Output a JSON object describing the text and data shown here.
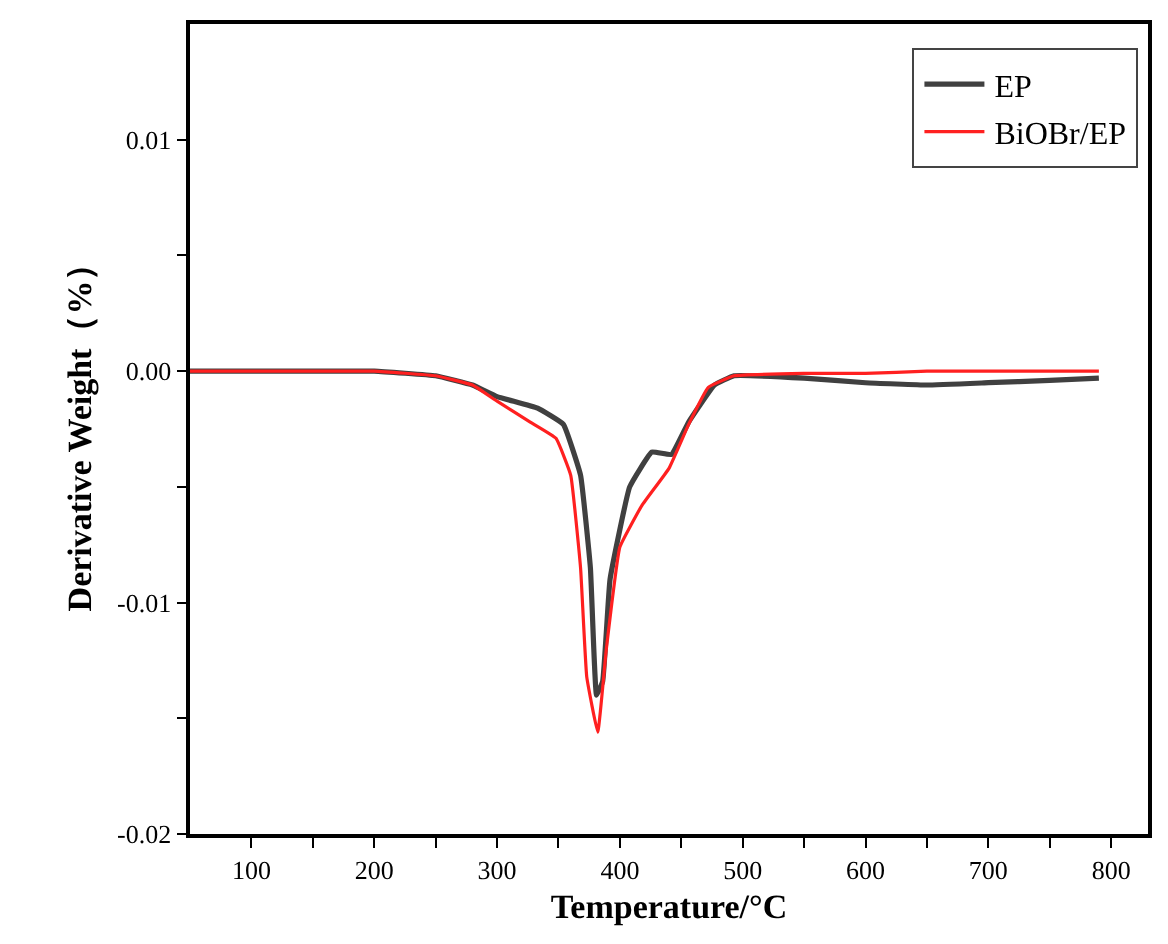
{
  "chart_data": {
    "type": "line",
    "xlabel": "Temperature/°C",
    "ylabel": "Derivative Weight（%）",
    "xlim": [
      50,
      830
    ],
    "ylim": [
      -0.02,
      0.015
    ],
    "xticks": [
      100,
      {
        "value": 150,
        "label": null
      },
      200,
      {
        "value": 250,
        "label": null
      },
      300,
      {
        "value": 350,
        "label": null
      },
      400,
      {
        "value": 450,
        "label": null
      },
      500,
      {
        "value": 550,
        "label": null
      },
      600,
      {
        "value": 650,
        "label": null
      },
      700,
      {
        "value": 750,
        "label": null
      },
      800
    ],
    "yticks": [
      -0.02,
      {
        "value": -0.015,
        "label": null
      },
      -0.01,
      {
        "value": -0.005,
        "label": null
      },
      {
        "value": 0,
        "label": "0.00"
      },
      {
        "value": 0.005,
        "label": null
      },
      0.01
    ],
    "legend": "top right",
    "marker": "none",
    "line_style": "solid",
    "series": [
      {
        "name": "EP",
        "color": "#404040",
        "x": [
          50,
          100,
          150,
          200,
          250,
          280,
          300,
          333,
          354,
          368,
          376,
          381,
          386,
          392,
          408,
          426,
          442,
          456,
          477,
          493,
          550,
          600,
          650,
          700,
          750,
          790
        ],
        "values": [
          0,
          0,
          0,
          0,
          -0.0002,
          -0.0006,
          -0.0011,
          -0.0016,
          -0.0023,
          -0.0045,
          -0.0085,
          -0.014,
          -0.0134,
          -0.009,
          -0.005,
          -0.0035,
          -0.0036,
          -0.0022,
          -0.0006,
          -0.0002,
          -0.0003,
          -0.0005,
          -0.0006,
          -0.0005,
          -0.0004,
          -0.0003
        ]
      },
      {
        "name": "BiOBr/EP",
        "color": "#ff2020",
        "x": [
          50,
          100,
          150,
          200,
          250,
          280,
          300,
          327,
          348,
          360,
          368,
          373,
          382,
          389,
          400,
          418,
          440,
          456,
          472,
          493,
          550,
          600,
          650,
          700,
          750,
          790
        ],
        "values": [
          0,
          0,
          0,
          0,
          -0.0002,
          -0.0006,
          -0.0013,
          -0.0022,
          -0.0029,
          -0.0045,
          -0.0085,
          -0.0132,
          -0.0156,
          -0.012,
          -0.0076,
          -0.0058,
          -0.0042,
          -0.0023,
          -0.0007,
          -0.0002,
          -0.0001,
          -0.0001,
          0,
          0,
          0,
          0
        ]
      }
    ]
  }
}
